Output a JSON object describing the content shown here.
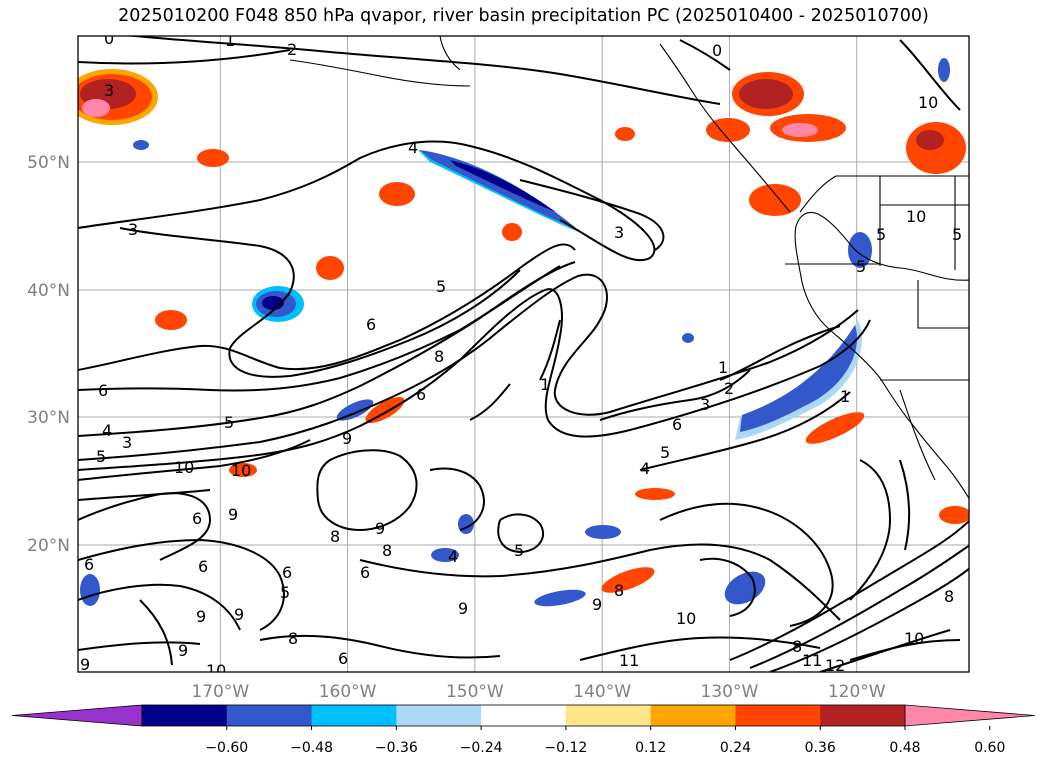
{
  "title": "2025010200 F048 850 hPa qvapor, river basin precipitation PC (2025010400 - 2025010700)",
  "map": {
    "lat_ticks": [
      {
        "lat": 50,
        "label": "50°N"
      },
      {
        "lat": 40,
        "label": "40°N"
      },
      {
        "lat": 30,
        "label": "30°N"
      },
      {
        "lat": 20,
        "label": "20°N"
      }
    ],
    "lon_ticks": [
      {
        "lon": -170,
        "label": "170°W"
      },
      {
        "lon": -160,
        "label": "160°W"
      },
      {
        "lon": -150,
        "label": "150°W"
      },
      {
        "lon": -140,
        "label": "140°W"
      },
      {
        "lon": -130,
        "label": "130°W"
      },
      {
        "lon": -120,
        "label": "120°W"
      }
    ],
    "extent": {
      "lon_min": -180,
      "lon_max": -110,
      "lat_min": 10,
      "lat_max": 60
    },
    "tick_label_color": "#808080",
    "contour_labels": [
      "0",
      "1",
      "2",
      "3",
      "4",
      "5",
      "6",
      "8",
      "9",
      "10",
      "11",
      "12"
    ]
  },
  "colorbar": {
    "colors": [
      "#9932cc",
      "#00008b",
      "#3358cc",
      "#00bfff",
      "#add8f5",
      "#ffffff",
      "#ffe58a",
      "#ffa500",
      "#ff4500",
      "#b22222",
      "#ff88aa"
    ],
    "tick_labels": [
      "−0.60",
      "−0.48",
      "−0.36",
      "−0.24",
      "−0.12",
      "0.12",
      "0.24",
      "0.36",
      "0.48",
      "0.60"
    ]
  }
}
